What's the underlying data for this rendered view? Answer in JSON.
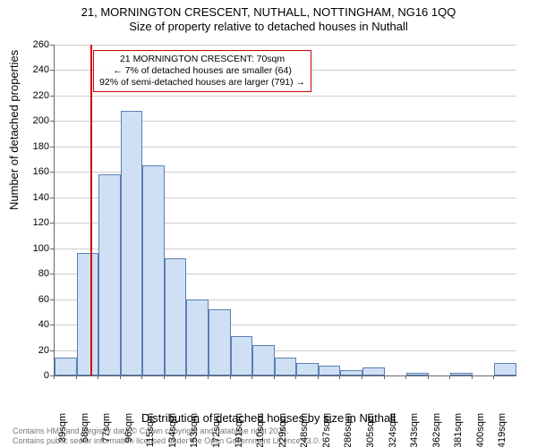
{
  "title": {
    "line1": "21, MORNINGTON CRESCENT, NUTHALL, NOTTINGHAM, NG16 1QQ",
    "line2": "Size of property relative to detached houses in Nuthall",
    "fontsize": 13
  },
  "chart": {
    "type": "histogram",
    "background_color": "#ffffff",
    "grid_color": "#cccccc",
    "axis_color": "#666666",
    "bar_fill": "#cfe0f5",
    "bar_border": "#5b7fb5",
    "ylim": [
      0,
      260
    ],
    "ytick_step": 20,
    "ylabel": "Number of detached properties",
    "xlabel": "Distribution of detached houses by size in Nuthall",
    "label_fontsize": 13,
    "tick_fontsize": 11,
    "x_start": 39,
    "x_step": 19,
    "bar_count": 21,
    "bars": [
      14,
      96,
      158,
      208,
      165,
      92,
      60,
      52,
      31,
      24,
      14,
      10,
      8,
      4,
      6,
      0,
      2,
      0,
      2,
      0,
      10
    ],
    "x_tick_labels": [
      "39sqm",
      "58sqm",
      "77sqm",
      "96sqm",
      "115sqm",
      "134sqm",
      "153sqm",
      "172sqm",
      "191sqm",
      "210sqm",
      "229sqm",
      "248sqm",
      "267sqm",
      "286sqm",
      "305sqm",
      "324sqm",
      "343sqm",
      "362sqm",
      "381sqm",
      "400sqm",
      "419sqm"
    ]
  },
  "marker": {
    "value_sqm": 70,
    "color": "#d00000"
  },
  "callout": {
    "line1": "21 MORNINGTON CRESCENT: 70sqm",
    "line2": "← 7% of detached houses are smaller (64)",
    "line3": "92% of semi-detached houses are larger (791) →",
    "border_color": "#d00000",
    "fontsize": 10.5
  },
  "footer": {
    "line1": "Contains HM Land Registry data © Crown copyright and database right 2025.",
    "line2": "Contains public sector information licensed under the Open Government Licence v3.0.",
    "color": "#777777",
    "fontsize": 9
  }
}
